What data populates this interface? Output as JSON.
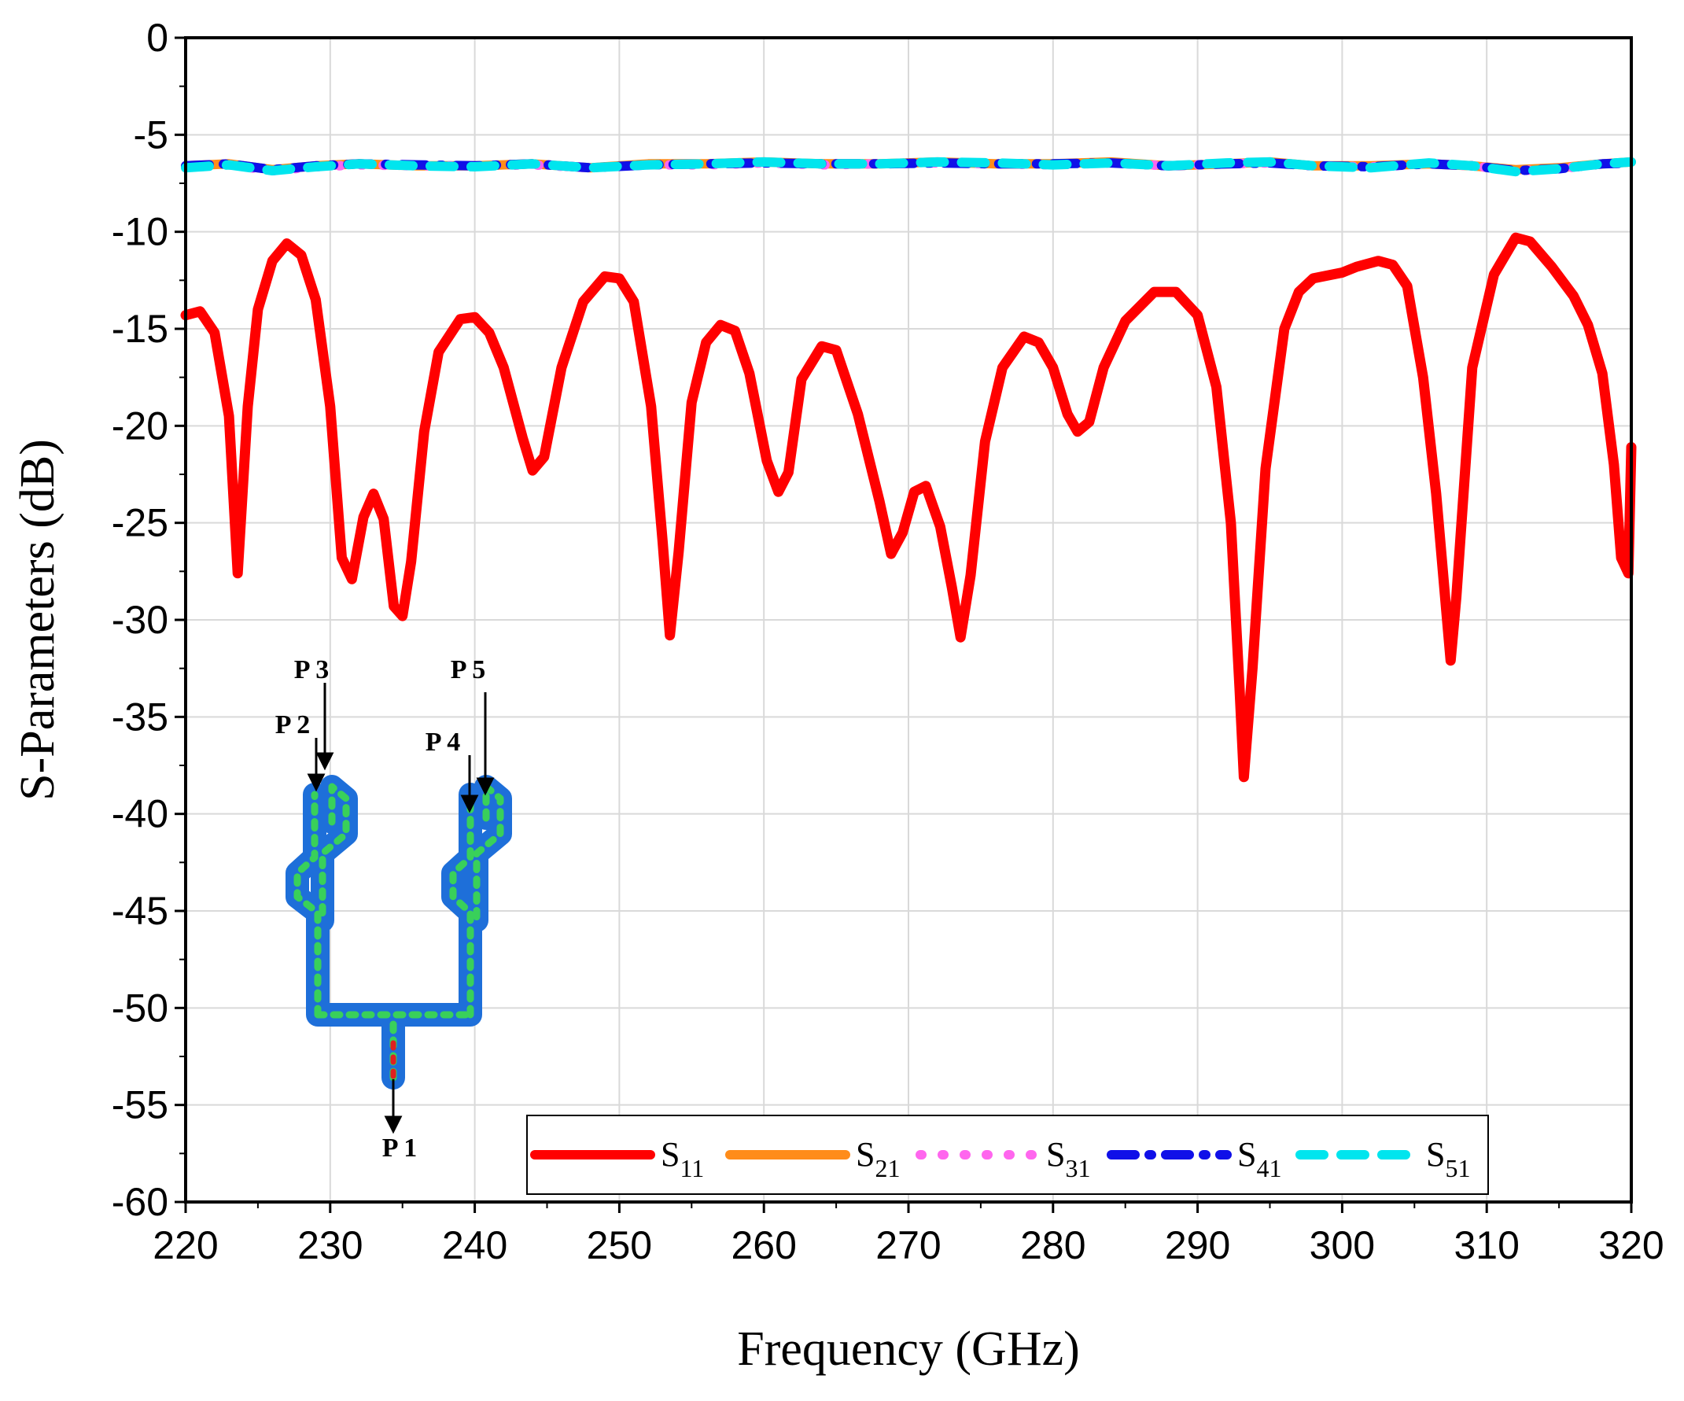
{
  "chart_data": {
    "type": "line",
    "title": "",
    "xlabel": "Frequency (GHz)",
    "ylabel": "S-Parameters (dB)",
    "xlim": [
      220,
      320
    ],
    "ylim": [
      -60,
      0
    ],
    "xticks": [
      "220",
      "230",
      "240",
      "250",
      "260",
      "270",
      "280",
      "290",
      "300",
      "310",
      "320"
    ],
    "yticks": [
      "0",
      "-5",
      "-10",
      "-15",
      "-20",
      "-25",
      "-30",
      "-35",
      "-40",
      "-45",
      "-50",
      "-55",
      "-60"
    ],
    "grid": true,
    "legend_position": "bottom-right",
    "series": [
      {
        "name": "S11",
        "sub": "11",
        "color": "#ff0000",
        "style": "solid",
        "points": [
          [
            220,
            -14.3
          ],
          [
            221,
            -14.1
          ],
          [
            222,
            -15.2
          ],
          [
            223,
            -19.5
          ],
          [
            223.6,
            -27.6
          ],
          [
            224.3,
            -19
          ],
          [
            225,
            -14
          ],
          [
            226,
            -11.5
          ],
          [
            227,
            -10.6
          ],
          [
            228,
            -11.2
          ],
          [
            229,
            -13.5
          ],
          [
            230,
            -19
          ],
          [
            230.8,
            -26.8
          ],
          [
            231.5,
            -27.9
          ],
          [
            232.3,
            -24.7
          ],
          [
            233,
            -23.5
          ],
          [
            233.7,
            -24.8
          ],
          [
            234.4,
            -29.3
          ],
          [
            235,
            -29.8
          ],
          [
            235.6,
            -27
          ],
          [
            236.5,
            -20.3
          ],
          [
            237.5,
            -16.2
          ],
          [
            239,
            -14.5
          ],
          [
            240,
            -14.4
          ],
          [
            241,
            -15.2
          ],
          [
            242,
            -17
          ],
          [
            243.3,
            -20.6
          ],
          [
            244,
            -22.3
          ],
          [
            244.8,
            -21.6
          ],
          [
            246,
            -17
          ],
          [
            247.5,
            -13.6
          ],
          [
            249,
            -12.3
          ],
          [
            250,
            -12.4
          ],
          [
            251,
            -13.6
          ],
          [
            252.2,
            -19
          ],
          [
            253,
            -26
          ],
          [
            253.5,
            -30.8
          ],
          [
            254.1,
            -26.5
          ],
          [
            255,
            -18.8
          ],
          [
            256,
            -15.7
          ],
          [
            257,
            -14.8
          ],
          [
            258,
            -15.1
          ],
          [
            259,
            -17.3
          ],
          [
            260.2,
            -21.8
          ],
          [
            261,
            -23.4
          ],
          [
            261.7,
            -22.4
          ],
          [
            262.6,
            -17.6
          ],
          [
            264,
            -15.9
          ],
          [
            265,
            -16.1
          ],
          [
            266.5,
            -19.4
          ],
          [
            268,
            -23.9
          ],
          [
            268.8,
            -26.6
          ],
          [
            269.6,
            -25.5
          ],
          [
            270.4,
            -23.4
          ],
          [
            271.2,
            -23.1
          ],
          [
            272.2,
            -25.2
          ],
          [
            273,
            -28.3
          ],
          [
            273.6,
            -30.9
          ],
          [
            274.3,
            -27.7
          ],
          [
            275.3,
            -20.8
          ],
          [
            276.5,
            -17
          ],
          [
            278,
            -15.4
          ],
          [
            279,
            -15.7
          ],
          [
            280,
            -17
          ],
          [
            281,
            -19.4
          ],
          [
            281.7,
            -20.3
          ],
          [
            282.5,
            -19.8
          ],
          [
            283.5,
            -17
          ],
          [
            285,
            -14.6
          ],
          [
            287,
            -13.1
          ],
          [
            288.5,
            -13.1
          ],
          [
            290,
            -14.3
          ],
          [
            291.3,
            -18
          ],
          [
            292.3,
            -25
          ],
          [
            292.9,
            -33.5
          ],
          [
            293.2,
            -38.1
          ],
          [
            293.8,
            -32.5
          ],
          [
            294.7,
            -22.2
          ],
          [
            296,
            -15
          ],
          [
            297,
            -13.1
          ],
          [
            298,
            -12.4
          ],
          [
            300,
            -12.1
          ],
          [
            301,
            -11.8
          ],
          [
            302.5,
            -11.5
          ],
          [
            303.5,
            -11.7
          ],
          [
            304.5,
            -12.8
          ],
          [
            305.6,
            -17.5
          ],
          [
            306.5,
            -23.5
          ],
          [
            307.2,
            -29.5
          ],
          [
            307.5,
            -32.1
          ],
          [
            307.9,
            -28.8
          ],
          [
            309,
            -17
          ],
          [
            310.5,
            -12.2
          ],
          [
            312,
            -10.3
          ],
          [
            313,
            -10.5
          ],
          [
            314.5,
            -11.8
          ],
          [
            316,
            -13.3
          ],
          [
            317,
            -14.8
          ],
          [
            318,
            -17.3
          ],
          [
            318.8,
            -22
          ],
          [
            319.3,
            -26.8
          ],
          [
            319.8,
            -27.6
          ],
          [
            320,
            -21.1
          ]
        ]
      },
      {
        "name": "S21",
        "sub": "21",
        "color": "#ff8c1a",
        "style": "solid",
        "points": [
          [
            220,
            -6.6
          ],
          [
            223,
            -6.5
          ],
          [
            226,
            -6.8
          ],
          [
            229,
            -6.6
          ],
          [
            232,
            -6.5
          ],
          [
            236,
            -6.6
          ],
          [
            240,
            -6.6
          ],
          [
            244,
            -6.5
          ],
          [
            248,
            -6.7
          ],
          [
            252,
            -6.5
          ],
          [
            256,
            -6.5
          ],
          [
            260,
            -6.4
          ],
          [
            264,
            -6.5
          ],
          [
            268,
            -6.5
          ],
          [
            272,
            -6.4
          ],
          [
            276,
            -6.5
          ],
          [
            280,
            -6.5
          ],
          [
            284,
            -6.4
          ],
          [
            288,
            -6.6
          ],
          [
            292,
            -6.5
          ],
          [
            295,
            -6.4
          ],
          [
            298,
            -6.6
          ],
          [
            302,
            -6.6
          ],
          [
            306,
            -6.5
          ],
          [
            309,
            -6.6
          ],
          [
            312,
            -6.8
          ],
          [
            315,
            -6.7
          ],
          [
            318,
            -6.5
          ],
          [
            320,
            -6.4
          ]
        ]
      },
      {
        "name": "S31",
        "sub": "31",
        "color": "#ff66ee",
        "style": "dotted",
        "points": [
          [
            220,
            -6.65
          ],
          [
            223,
            -6.55
          ],
          [
            226,
            -6.85
          ],
          [
            229,
            -6.65
          ],
          [
            232,
            -6.55
          ],
          [
            236,
            -6.6
          ],
          [
            240,
            -6.6
          ],
          [
            244,
            -6.55
          ],
          [
            248,
            -6.7
          ],
          [
            252,
            -6.55
          ],
          [
            256,
            -6.55
          ],
          [
            260,
            -6.45
          ],
          [
            264,
            -6.55
          ],
          [
            268,
            -6.5
          ],
          [
            272,
            -6.45
          ],
          [
            276,
            -6.5
          ],
          [
            280,
            -6.55
          ],
          [
            284,
            -6.45
          ],
          [
            288,
            -6.6
          ],
          [
            292,
            -6.5
          ],
          [
            295,
            -6.45
          ],
          [
            298,
            -6.6
          ],
          [
            302,
            -6.65
          ],
          [
            306,
            -6.5
          ],
          [
            309,
            -6.6
          ],
          [
            312,
            -6.85
          ],
          [
            315,
            -6.75
          ],
          [
            318,
            -6.5
          ],
          [
            320,
            -6.45
          ]
        ]
      },
      {
        "name": "S41",
        "sub": "41",
        "color": "#1010e8",
        "style": "dashdot",
        "points": [
          [
            220,
            -6.6
          ],
          [
            223,
            -6.5
          ],
          [
            226,
            -6.8
          ],
          [
            229,
            -6.6
          ],
          [
            232,
            -6.5
          ],
          [
            236,
            -6.55
          ],
          [
            240,
            -6.6
          ],
          [
            244,
            -6.5
          ],
          [
            248,
            -6.7
          ],
          [
            252,
            -6.55
          ],
          [
            256,
            -6.5
          ],
          [
            260,
            -6.45
          ],
          [
            264,
            -6.5
          ],
          [
            268,
            -6.5
          ],
          [
            272,
            -6.45
          ],
          [
            276,
            -6.5
          ],
          [
            280,
            -6.5
          ],
          [
            284,
            -6.45
          ],
          [
            288,
            -6.6
          ],
          [
            292,
            -6.5
          ],
          [
            295,
            -6.45
          ],
          [
            298,
            -6.6
          ],
          [
            302,
            -6.65
          ],
          [
            306,
            -6.5
          ],
          [
            309,
            -6.6
          ],
          [
            312,
            -6.85
          ],
          [
            315,
            -6.75
          ],
          [
            318,
            -6.5
          ],
          [
            320,
            -6.45
          ]
        ]
      },
      {
        "name": "S51",
        "sub": "51",
        "color": "#00e5ee",
        "style": "dashed",
        "points": [
          [
            220,
            -6.7
          ],
          [
            223,
            -6.55
          ],
          [
            226,
            -6.85
          ],
          [
            229,
            -6.65
          ],
          [
            232,
            -6.5
          ],
          [
            236,
            -6.6
          ],
          [
            240,
            -6.65
          ],
          [
            244,
            -6.5
          ],
          [
            248,
            -6.7
          ],
          [
            252,
            -6.55
          ],
          [
            256,
            -6.5
          ],
          [
            260,
            -6.4
          ],
          [
            264,
            -6.5
          ],
          [
            268,
            -6.5
          ],
          [
            272,
            -6.4
          ],
          [
            276,
            -6.45
          ],
          [
            280,
            -6.55
          ],
          [
            284,
            -6.45
          ],
          [
            288,
            -6.6
          ],
          [
            292,
            -6.45
          ],
          [
            295,
            -6.4
          ],
          [
            298,
            -6.6
          ],
          [
            302,
            -6.7
          ],
          [
            306,
            -6.45
          ],
          [
            309,
            -6.6
          ],
          [
            312,
            -6.9
          ],
          [
            315,
            -6.75
          ],
          [
            318,
            -6.5
          ],
          [
            320,
            -6.4
          ]
        ]
      }
    ]
  },
  "inset": {
    "port_labels": [
      "P 1",
      "P 2",
      "P 3",
      "P 4",
      "P 5"
    ]
  }
}
